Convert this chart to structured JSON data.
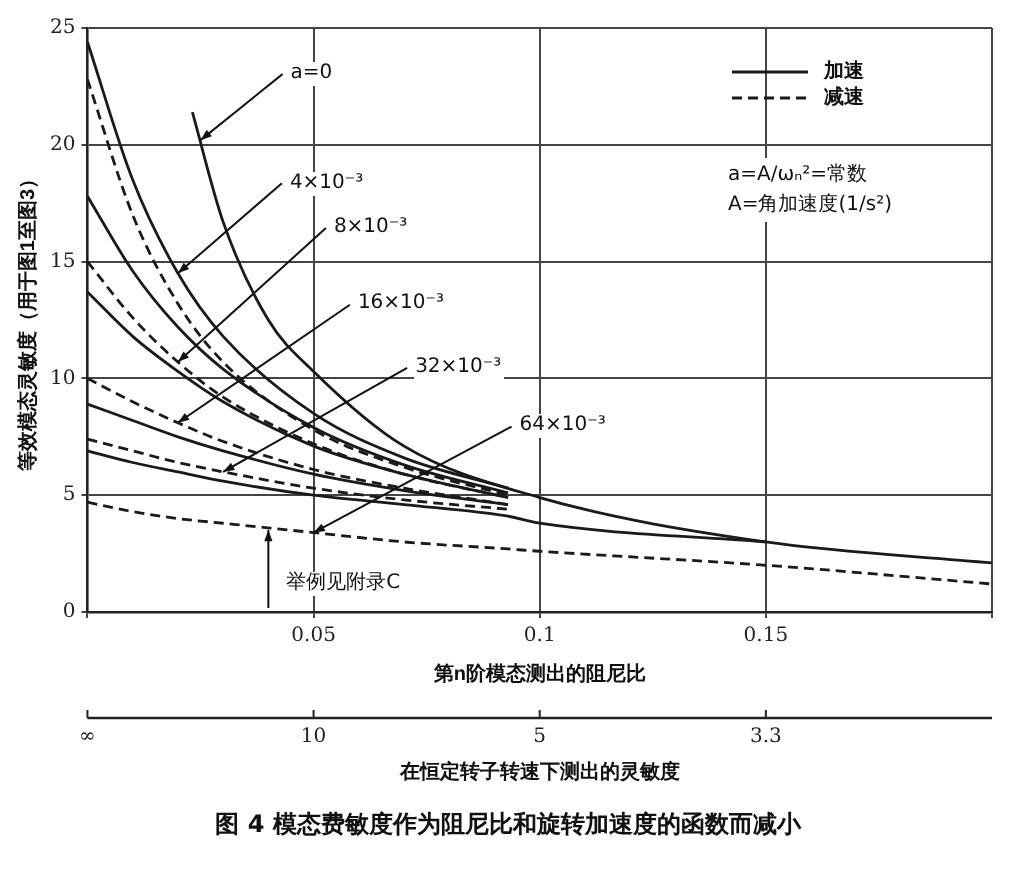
{
  "chart_data": {
    "type": "line",
    "title": "图 4  模态费敏度作为阻尼比和旋转加速度的函数而减小",
    "xlabel": "第n阶模态测出的阻尼比",
    "ylabel": "等效模态灵敏度（用于图1至图3）",
    "xlim": [
      0,
      0.2
    ],
    "xticks": [
      {
        "value": 0,
        "label": null
      },
      0.05,
      0.1,
      0.15,
      {
        "value": 0.2,
        "label": null
      }
    ],
    "ylim": [
      0,
      25
    ],
    "yticks": [
      0,
      5,
      10,
      15,
      20,
      25
    ],
    "grid": true,
    "legend": "top right",
    "marker": "none",
    "series": [
      {
        "name": "加速",
        "color": "#1a1a1a",
        "line_style": "solid",
        "x": [
          0.0232,
          0.03,
          0.04,
          0.05,
          0.07,
          0.1,
          0.15,
          0.2
        ],
        "values": [
          21.4,
          16.7,
          12.5,
          10.3,
          7.1,
          4.9,
          3.0,
          2.1
        ]
      },
      {
        "name": "减速",
        "color": "#1a1a1a",
        "line_style": "dashed",
        "x": [
          0,
          0.01,
          0.02,
          0.03,
          0.05,
          0.07,
          0.093
        ],
        "values": [
          22.8,
          17,
          13.2,
          10.7,
          7.8,
          6.2,
          5.0
        ]
      },
      {
        "color": "#1a1a1a",
        "line_style": "solid",
        "x": [
          0,
          0.01,
          0.02,
          0.03,
          0.05,
          0.07,
          0.093
        ],
        "values": [
          24.4,
          18.5,
          14.5,
          11.8,
          8.5,
          6.6,
          5.3
        ]
      },
      {
        "color": "#1a1a1a",
        "line_style": "solid",
        "x": [
          0,
          0.01,
          0.02,
          0.03,
          0.05,
          0.07,
          0.093
        ],
        "values": [
          17.8,
          14.6,
          12.2,
          10.4,
          7.9,
          6.3,
          5.1
        ]
      },
      {
        "color": "#1a1a1a",
        "line_style": "dashed",
        "x": [
          0,
          0.01,
          0.02,
          0.03,
          0.05,
          0.07,
          0.093
        ],
        "values": [
          15,
          12.6,
          10.7,
          9.2,
          7.2,
          5.9,
          4.9
        ]
      },
      {
        "color": "#1a1a1a",
        "line_style": "solid",
        "x": [
          0,
          0.01,
          0.02,
          0.03,
          0.05,
          0.07,
          0.093
        ],
        "values": [
          13.7,
          11.8,
          10.3,
          9.0,
          7.1,
          5.9,
          4.9
        ]
      },
      {
        "color": "#1a1a1a",
        "line_style": "dashed",
        "x": [
          0,
          0.01,
          0.02,
          0.03,
          0.05,
          0.07,
          0.093
        ],
        "values": [
          10,
          9.0,
          8.1,
          7.3,
          6.1,
          5.3,
          4.6
        ]
      },
      {
        "color": "#1a1a1a",
        "line_style": "solid",
        "x": [
          0,
          0.01,
          0.02,
          0.03,
          0.05,
          0.07,
          0.093
        ],
        "values": [
          8.9,
          8.2,
          7.5,
          6.9,
          5.9,
          5.2,
          4.6
        ]
      },
      {
        "color": "#1a1a1a",
        "line_style": "dashed",
        "x": [
          0,
          0.01,
          0.02,
          0.03,
          0.05,
          0.07,
          0.093
        ],
        "values": [
          7.4,
          6.9,
          6.4,
          6.0,
          5.3,
          4.8,
          4.4
        ]
      },
      {
        "color": "#1a1a1a",
        "line_style": "solid",
        "x": [
          0,
          0.01,
          0.02,
          0.03,
          0.05,
          0.07,
          0.093,
          0.1,
          0.15
        ],
        "values": [
          6.9,
          6.4,
          6.0,
          5.6,
          5.0,
          4.6,
          4.1,
          3.8,
          3.0
        ]
      },
      {
        "color": "#1a1a1a",
        "line_style": "dashed",
        "x": [
          0,
          0.01,
          0.02,
          0.03,
          0.05,
          0.07,
          0.093,
          0.1,
          0.15,
          0.2
        ],
        "values": [
          4.7,
          4.3,
          4.0,
          3.8,
          3.4,
          3.0,
          2.7,
          2.6,
          2.0,
          1.2
        ]
      }
    ],
    "annotations": [
      "a=A/ωₙ²=常数",
      "A=角加速度(1/s²)",
      "∞",
      "10",
      "5",
      "3.3",
      "在恒定转子转速下测出的灵敏度",
      {
        "text": "a=0",
        "x": 0.025,
        "y": 20.2
      },
      {
        "text": "4×10⁻³",
        "x": 0.02,
        "y": 14.5
      },
      {
        "text": "8×10⁻³",
        "x": 0.02,
        "y": 10.7
      },
      {
        "text": "16×10⁻³",
        "x": 0.02,
        "y": 8.1
      },
      {
        "text": "32×10⁻³",
        "x": 0.03,
        "y": 6.0
      },
      {
        "text": "64×10⁻³",
        "x": 0.05,
        "y": 3.4
      },
      {
        "text": "举例见附录C",
        "x": 0.04,
        "y": 3.6
      }
    ]
  }
}
